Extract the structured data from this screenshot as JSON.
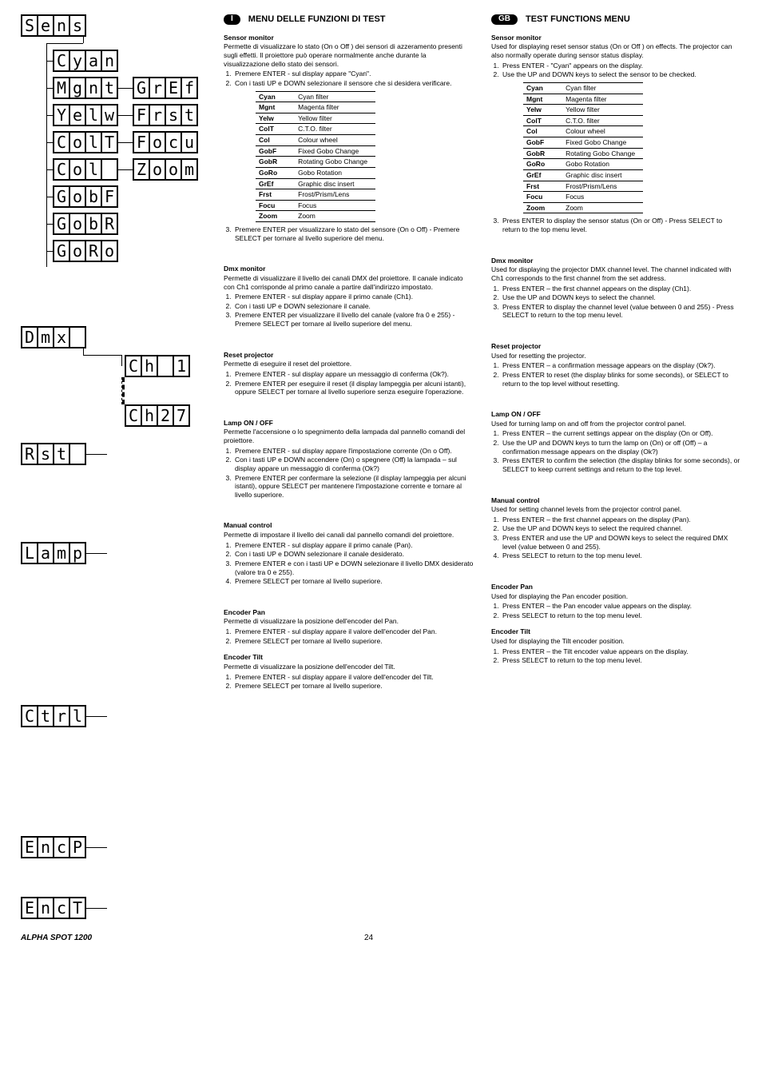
{
  "footer": {
    "product": "ALPHA SPOT 1200",
    "page": "24"
  },
  "lcd": {
    "sens": [
      "S",
      "e",
      "n",
      "s"
    ],
    "cyan": [
      "C",
      "y",
      "a",
      "n"
    ],
    "mgnt": [
      "M",
      "g",
      "n",
      "t"
    ],
    "yelw": [
      "Y",
      "e",
      "l",
      "w"
    ],
    "colt": [
      "C",
      "o",
      "l",
      "T"
    ],
    "col": [
      "C",
      "o",
      "l",
      ""
    ],
    "gobf": [
      "G",
      "o",
      "b",
      "F"
    ],
    "gobr": [
      "G",
      "o",
      "b",
      "R"
    ],
    "goro": [
      "G",
      "o",
      "R",
      "o"
    ],
    "gref": [
      "G",
      "r",
      "E",
      "f"
    ],
    "frst": [
      "F",
      "r",
      "s",
      "t"
    ],
    "focu": [
      "F",
      "o",
      "c",
      "u"
    ],
    "zoom": [
      "Z",
      "o",
      "o",
      "m"
    ],
    "dmx": [
      "D",
      "m",
      "x",
      ""
    ],
    "ch1": [
      "C",
      "h",
      "",
      "1"
    ],
    "ch27": [
      "C",
      "h",
      "2",
      "7"
    ],
    "rst": [
      "R",
      "s",
      "t",
      ""
    ],
    "lamp": [
      "L",
      "a",
      "m",
      "p"
    ],
    "ctrl": [
      "C",
      "t",
      "r",
      "l"
    ],
    "encp": [
      "E",
      "n",
      "c",
      "P"
    ],
    "enct": [
      "E",
      "n",
      "c",
      "T"
    ]
  },
  "table": [
    [
      "Cyan",
      "Cyan filter"
    ],
    [
      "Mgnt",
      "Magenta filter"
    ],
    [
      "Yelw",
      "Yellow filter"
    ],
    [
      "ColT",
      "C.T.O. filter"
    ],
    [
      "Col",
      "Colour wheel"
    ],
    [
      "GobF",
      "Fixed Gobo Change"
    ],
    [
      "GobR",
      "Rotating Gobo Change"
    ],
    [
      "GoRo",
      "Gobo Rotation"
    ],
    [
      "GrEf",
      "Graphic disc insert"
    ],
    [
      "Frst",
      "Frost/Prism/Lens"
    ],
    [
      "Focu",
      "Focus"
    ],
    [
      "Zoom",
      "Zoom"
    ]
  ],
  "it": {
    "badge": "I",
    "title": "MENU DELLE FUNZIONI DI TEST",
    "sensor": {
      "head": "Sensor monitor",
      "intro": "Permette di visualizzare lo stato (On o Off ) dei sensori di azzeramento presenti sugli effetti. Il proiettore può operare normalmente anche durante la visualizzazione dello stato dei sensori.",
      "steps": [
        "Premere ENTER - sul display appare \"Cyan\".",
        "Con i tasti UP e DOWN selezionare il sensore che si desidera verificare."
      ],
      "after": "Premere ENTER per visualizzare lo stato del sensore (On o Off) - Premere SELECT per tornare al livello superiore del menu."
    },
    "dmx": {
      "head": "Dmx monitor",
      "intro": "Permette di visualizzare il livello dei canali DMX del proiettore. Il canale indicato con Ch1 corrisponde al primo canale a partire dall'indirizzo impostato.",
      "steps": [
        "Premere ENTER - sul display appare il primo canale (Ch1).",
        "Con i tasti UP e DOWN selezionare il canale.",
        "Premere ENTER per visualizzare il livello del canale (valore fra 0 e 255) - Premere SELECT per tornare al livello superiore del menu."
      ]
    },
    "rst": {
      "head": "Reset projector",
      "intro": "Permette di eseguire il reset del proiettore.",
      "steps": [
        "Premere ENTER - sul display appare un messaggio di conferma (Ok?).",
        "Premere ENTER per eseguire il reset (il display lampeggia per alcuni istanti), oppure SELECT per tornare al livello superiore senza eseguire l'operazione."
      ]
    },
    "lamp": {
      "head": "Lamp ON / OFF",
      "intro": "Permette l'accensione o lo spegnimento della lampada dal pannello comandi del proiettore.",
      "steps": [
        "Premere ENTER - sul display appare l'impostazione corrente (On o Off).",
        "Con i tasti UP e DOWN accendere (On) o spegnere (Off) la lampada – sul display appare un messaggio di conferma (Ok?)",
        "Premere ENTER per confermare la selezione (il display lampeggia per alcuni istanti), oppure SELECT per mantenere l'impostazione corrente e tornare al livello superiore."
      ]
    },
    "ctrl": {
      "head": "Manual control",
      "intro": "Permette di impostare il livello dei canali dal pannello comandi del proiettore.",
      "steps": [
        "Premere ENTER - sul display appare il primo canale (Pan).",
        "Con i tasti UP e DOWN selezionare il canale desiderato.",
        "Premere ENTER e con i tasti UP e DOWN selezionare il livello DMX desiderato (valore tra 0 e 255).",
        "Premere SELECT per tornare al livello superiore."
      ]
    },
    "encp": {
      "head": "Encoder Pan",
      "intro": "Permette di visualizzare la posizione dell'encoder del Pan.",
      "steps": [
        "Premere ENTER - sul display appare il valore dell'encoder del Pan.",
        "Premere SELECT per tornare al livello superiore."
      ]
    },
    "enct": {
      "head": "Encoder Tilt",
      "intro": "Permette di visualizzare la posizione dell'encoder del Tilt.",
      "steps": [
        "Premere ENTER - sul display appare il valore dell'encoder del Tilt.",
        "Premere SELECT per tornare al livello superiore."
      ]
    }
  },
  "en": {
    "badge": "GB",
    "title": "TEST FUNCTIONS MENU",
    "sensor": {
      "head": "Sensor monitor",
      "intro": "Used for displaying reset sensor status (On or Off ) on effects. The projector can also normally operate during sensor status display.",
      "steps": [
        "Press ENTER -  \"Cyan\" appears on the display.",
        "Use the UP and DOWN keys to select the sensor to be checked."
      ],
      "after": "Press ENTER to display the sensor status (On or Off) - Press SELECT to return to the top menu level."
    },
    "dmx": {
      "head": "Dmx monitor",
      "intro": "Used for displaying the projector DMX channel level. The channel indicated with Ch1 corresponds to the first channel from the set address.",
      "steps": [
        "Press ENTER – the first channel appears on the display (Ch1).",
        "Use the UP and DOWN keys to select the channel.",
        "Press ENTER to display the channel level (value between 0 and 255) - Press SELECT to return to the top menu level."
      ]
    },
    "rst": {
      "head": "Reset projector",
      "intro": "Used for resetting the projector.",
      "steps": [
        "Press ENTER – a confirmation message appears on the display (Ok?).",
        "Press ENTER to reset (the display blinks for some seconds), or SELECT to return to the top level without resetting."
      ]
    },
    "lamp": {
      "head": "Lamp ON / OFF",
      "intro": "Used for turning lamp on and off from the projector control panel.",
      "steps": [
        "Press ENTER – the current settings appear on the display (On or Off).",
        "Use the UP and DOWN keys to turn the lamp on (On) or off (Off) – a confirmation message appears on the display (Ok?)",
        "Press ENTER to confirm the selection (the display blinks for some seconds), or SELECT to keep current settings and return to the top level."
      ]
    },
    "ctrl": {
      "head": "Manual control",
      "intro": "Used for setting channel levels from the projector control panel.",
      "steps": [
        "Press ENTER – the first channel appears on the display (Pan).",
        "Use the UP and DOWN keys to select the required channel.",
        "Press ENTER and use the UP and DOWN keys to select the required DMX level (value between 0 and 255).",
        "Press SELECT to return to the top menu level."
      ]
    },
    "encp": {
      "head": "Encoder Pan",
      "intro": "Used for displaying the Pan encoder position.",
      "steps": [
        "Press ENTER – the Pan encoder value appears on the display.",
        "Press SELECT to return to the top menu level."
      ]
    },
    "enct": {
      "head": "Encoder Tilt",
      "intro": "Used for displaying the Tilt encoder position.",
      "steps": [
        "Press ENTER – the Tilt encoder value appears on the display.",
        "Press SELECT to return to the top menu level."
      ]
    }
  }
}
